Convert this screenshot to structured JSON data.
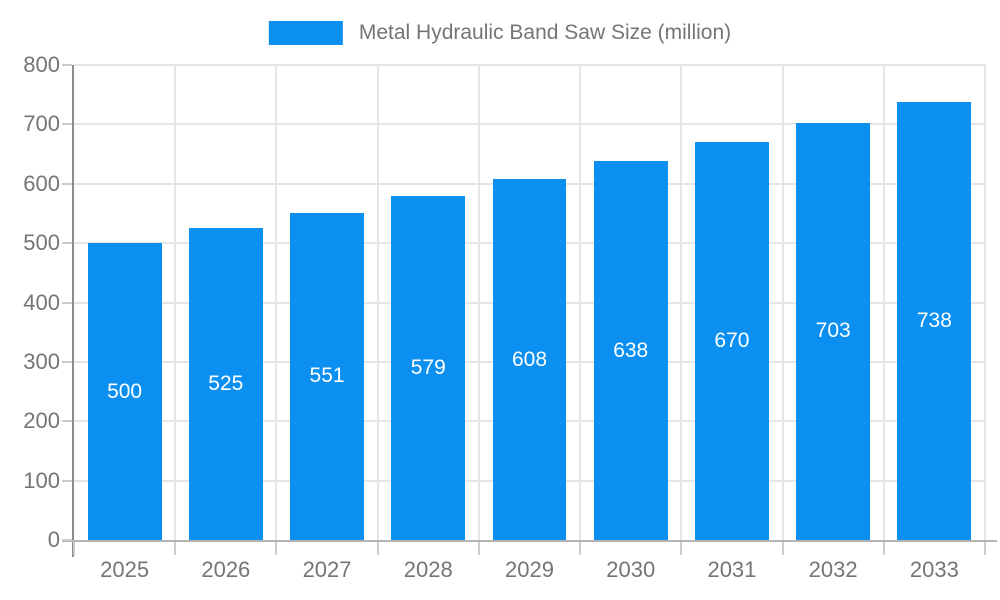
{
  "legend": {
    "label": "Metal Hydraulic Band Saw Size (million)"
  },
  "chart_data": {
    "type": "bar",
    "title": "Metal Hydraulic Band Saw Size (million)",
    "categories": [
      "2025",
      "2026",
      "2027",
      "2028",
      "2029",
      "2030",
      "2031",
      "2032",
      "2033"
    ],
    "series": [
      {
        "name": "Metal Hydraulic Band Saw Size (million)",
        "values": [
          500,
          525,
          551,
          579,
          608,
          638,
          670,
          703,
          738
        ]
      }
    ],
    "value_labels": [
      "500",
      "525",
      "551",
      "579",
      "608",
      "638",
      "670",
      "703",
      "738"
    ],
    "xlabel": "",
    "ylabel": "",
    "ylim": [
      0,
      800
    ],
    "ytick_step": 100,
    "ytick_labels": [
      "0",
      "100",
      "200",
      "300",
      "400",
      "500",
      "600",
      "700",
      "800"
    ],
    "grid": true,
    "legend_position": "top-center",
    "colors": {
      "bar": "#0b90f1",
      "value_label": "#ffffff",
      "axis_label": "#757575",
      "gridline": "#e5e5e5",
      "y_axis_line": "#8c8c8c",
      "x_axis_line": "#b3b3b3",
      "tick": "#cccccc",
      "background": "#ffffff"
    }
  }
}
